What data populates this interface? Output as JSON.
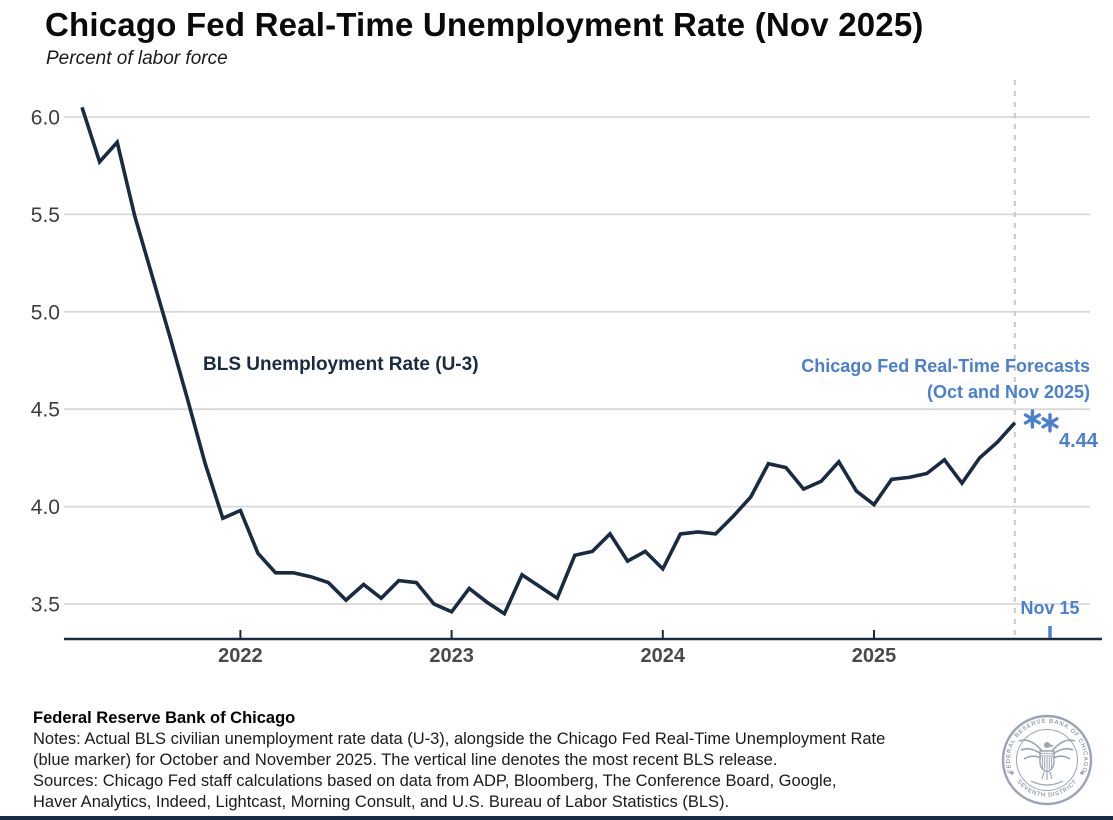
{
  "page": {
    "title": "Chicago Fed Real-Time Unemployment Rate (Nov 2025)",
    "subtitle": "Percent of labor force"
  },
  "chart_data": {
    "type": "line",
    "title": "Chicago Fed Real-Time Unemployment Rate (Nov 2025)",
    "subtitle": "Percent of labor force",
    "x_axis": {
      "frequency": "monthly",
      "start": "Apr 2021",
      "end": "Sep 2025",
      "tick_labels": [
        "2022",
        "2023",
        "2024",
        "2025"
      ]
    },
    "y_axis": {
      "label": "Percent of labor force",
      "ticks": [
        6.0,
        5.5,
        5.0,
        4.5,
        4.0,
        3.5
      ],
      "ylim": [
        3.3,
        6.15
      ],
      "grid": "horizontal"
    },
    "series": [
      {
        "name": "BLS Unemployment Rate (U-3)",
        "type": "line",
        "color": "#182B42",
        "start": "Apr 2021",
        "values": [
          6.05,
          5.77,
          5.87,
          5.49,
          5.18,
          4.87,
          4.55,
          4.22,
          3.94,
          3.98,
          3.76,
          3.66,
          3.66,
          3.64,
          3.61,
          3.52,
          3.6,
          3.53,
          3.62,
          3.61,
          3.5,
          3.46,
          3.58,
          3.51,
          3.45,
          3.65,
          3.59,
          3.53,
          3.75,
          3.77,
          3.86,
          3.72,
          3.77,
          3.68,
          3.86,
          3.87,
          3.86,
          3.95,
          4.05,
          4.22,
          4.2,
          4.09,
          4.13,
          4.23,
          4.08,
          4.01,
          4.14,
          4.15,
          4.17,
          4.24,
          4.12,
          4.25,
          4.33,
          4.43
        ]
      },
      {
        "name": "Chicago Fed Real-Time Forecasts (Oct and Nov 2025)",
        "type": "scatter",
        "marker": "asterisk",
        "color": "#4A80CE",
        "points": [
          {
            "label": "Oct 2025",
            "value": 4.45
          },
          {
            "label": "Nov 2025",
            "value": 4.43
          }
        ],
        "data_label": "4.44"
      }
    ],
    "vline": {
      "style": "dashed",
      "position": "Sep 2025",
      "meaning": "most recent BLS release"
    }
  },
  "annotations": {
    "series_label": "BLS Unemployment Rate (U-3)",
    "forecast_label_line1": "Chicago Fed Real-Time Forecasts",
    "forecast_label_line2": "(Oct and Nov 2025)",
    "forecast_value_label": "4.44",
    "vline_label": "Nov 15"
  },
  "footer": {
    "org": "Federal Reserve Bank of Chicago",
    "notes_line1": "Notes: Actual BLS civilian unemployment rate data (U-3), alongside the Chicago Fed Real-Time Unemployment Rate",
    "notes_line2": "(blue marker) for October and November 2025. The vertical line denotes the most recent BLS release.",
    "sources_line1": "Sources: Chicago Fed staff calculations based on data from ADP, Bloomberg, The Conference Board, Google,",
    "sources_line2": "Haver Analytics, Indeed, Lightcast, Morning Consult, and U.S. Bureau of Labor Statistics (BLS)."
  },
  "seal": {
    "top_text": "FEDERAL RESERVE BANK OF CHICAGO",
    "bottom_text": "SEVENTH DISTRICT"
  },
  "colors": {
    "line_navy": "#182B42",
    "forecast_blue": "#4A80CE",
    "gridline": "#D8D8D8",
    "dashed_line": "#C8C8C8",
    "y_tick_text": "#3D3D3D",
    "x_tick_text": "#4A4A4A",
    "seal_gray": "#9AA4B2",
    "background": "#FFFFFF"
  }
}
